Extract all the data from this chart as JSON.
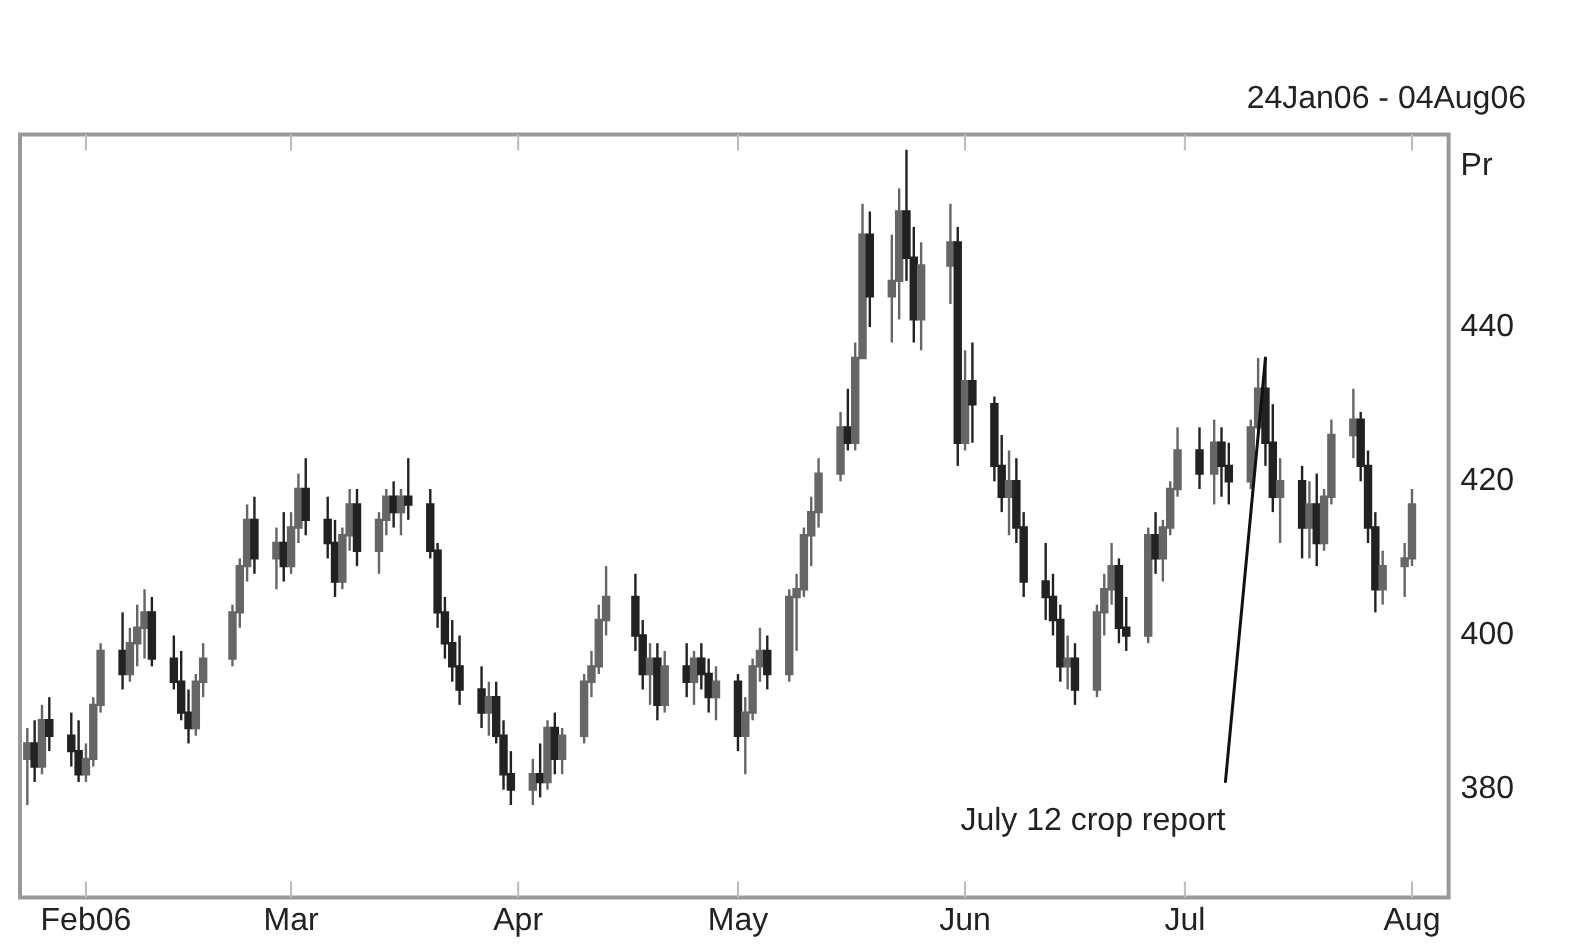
{
  "chart_data": {
    "type": "candlestick",
    "title": "24Jan06 - 04Aug06",
    "ylabel": "Pr",
    "colors": [
      "#666666",
      "#222222",
      "#666666",
      "#222222",
      "#222222",
      "#222222",
      "#666666",
      "#666666",
      "#666666",
      "#222222",
      "#666666",
      "#666666",
      "#666666",
      "#222222",
      "#222222",
      "#222222",
      "#222222",
      "#666666",
      "#666666",
      "#666666",
      "#666666",
      "#666666",
      "#222222",
      "#666666",
      "#222222",
      "#666666",
      "#666666",
      "#222222",
      "#222222",
      "#222222",
      "#666666",
      "#666666",
      "#222222",
      "#666666",
      "#666666",
      "#222222",
      "#666666",
      "#222222",
      "#222222",
      "#222222",
      "#222222",
      "#222222",
      "#222222",
      "#222222",
      "#666666",
      "#222222",
      "#222222",
      "#222222",
      "#666666",
      "#222222",
      "#666666",
      "#222222",
      "#666666",
      "#666666",
      "#666666",
      "#666666",
      "#666666",
      "#222222",
      "#222222",
      "#666666",
      "#222222",
      "#666666",
      "#222222",
      "#666666",
      "#222222",
      "#222222",
      "#666666",
      "#222222",
      "#666666",
      "#666666",
      "#666666",
      "#222222",
      "#666666",
      "#666666",
      "#666666",
      "#666666",
      "#666666",
      "#666666",
      "#222222",
      "#666666",
      "#666666",
      "#222222",
      "#666666",
      "#666666",
      "#222222",
      "#222222",
      "#666666",
      "#666666",
      "#222222",
      "#666666",
      "#222222",
      "#222222",
      "#222222",
      "#666666",
      "#222222",
      "#222222",
      "#222222",
      "#222222",
      "#222222",
      "#666666",
      "#222222",
      "#666666",
      "#666666",
      "#666666",
      "#222222",
      "#222222",
      "#666666",
      "#222222",
      "#666666",
      "#666666",
      "#666666",
      "#222222",
      "#666666",
      "#222222",
      "#222222",
      "#666666",
      "#666666",
      "#222222",
      "#222222",
      "#666666",
      "#222222",
      "#666666",
      "#222222",
      "#666666",
      "#666666",
      "#666666",
      "#222222",
      "#222222",
      "#222222",
      "#666666",
      "#666666",
      "#666666"
    ],
    "x": [
      "2006-01-24",
      "2006-01-25",
      "2006-01-26",
      "2006-01-27",
      "2006-01-30",
      "2006-01-31",
      "2006-02-01",
      "2006-02-02",
      "2006-02-03",
      "2006-02-06",
      "2006-02-07",
      "2006-02-08",
      "2006-02-09",
      "2006-02-10",
      "2006-02-13",
      "2006-02-14",
      "2006-02-15",
      "2006-02-16",
      "2006-02-17",
      "2006-02-21",
      "2006-02-22",
      "2006-02-23",
      "2006-02-24",
      "2006-02-27",
      "2006-02-28",
      "2006-03-01",
      "2006-03-02",
      "2006-03-03",
      "2006-03-06",
      "2006-03-07",
      "2006-03-08",
      "2006-03-09",
      "2006-03-10",
      "2006-03-13",
      "2006-03-14",
      "2006-03-15",
      "2006-03-16",
      "2006-03-17",
      "2006-03-20",
      "2006-03-21",
      "2006-03-22",
      "2006-03-23",
      "2006-03-24",
      "2006-03-27",
      "2006-03-28",
      "2006-03-29",
      "2006-03-30",
      "2006-03-31",
      "2006-04-03",
      "2006-04-04",
      "2006-04-05",
      "2006-04-06",
      "2006-04-07",
      "2006-04-10",
      "2006-04-11",
      "2006-04-12",
      "2006-04-13",
      "2006-04-17",
      "2006-04-18",
      "2006-04-19",
      "2006-04-20",
      "2006-04-21",
      "2006-04-24",
      "2006-04-25",
      "2006-04-26",
      "2006-04-27",
      "2006-04-28",
      "2006-05-01",
      "2006-05-02",
      "2006-05-03",
      "2006-05-04",
      "2006-05-05",
      "2006-05-08",
      "2006-05-09",
      "2006-05-10",
      "2006-05-11",
      "2006-05-12",
      "2006-05-15",
      "2006-05-16",
      "2006-05-17",
      "2006-05-18",
      "2006-05-19",
      "2006-05-22",
      "2006-05-23",
      "2006-05-24",
      "2006-05-25",
      "2006-05-26",
      "2006-05-30",
      "2006-05-31",
      "2006-06-01",
      "2006-06-02",
      "2006-06-05",
      "2006-06-06",
      "2006-06-07",
      "2006-06-08",
      "2006-06-09",
      "2006-06-12",
      "2006-06-13",
      "2006-06-14",
      "2006-06-15",
      "2006-06-16",
      "2006-06-19",
      "2006-06-20",
      "2006-06-21",
      "2006-06-22",
      "2006-06-23",
      "2006-06-26",
      "2006-06-27",
      "2006-06-28",
      "2006-06-29",
      "2006-06-30",
      "2006-07-03",
      "2006-07-05",
      "2006-07-06",
      "2006-07-07",
      "2006-07-10",
      "2006-07-11",
      "2006-07-12",
      "2006-07-13",
      "2006-07-14",
      "2006-07-17",
      "2006-07-18",
      "2006-07-19",
      "2006-07-20",
      "2006-07-21",
      "2006-07-24",
      "2006-07-25",
      "2006-07-26",
      "2006-07-27",
      "2006-07-28",
      "2006-07-31",
      "2006-08-01"
    ],
    "ohlc": [
      [
        384,
        388,
        378,
        386
      ],
      [
        386,
        389,
        381,
        383
      ],
      [
        383,
        391,
        382,
        389
      ],
      [
        389,
        392,
        385,
        387
      ],
      [
        387,
        390,
        383,
        385
      ],
      [
        385,
        389,
        381,
        382
      ],
      [
        382,
        386,
        381,
        384
      ],
      [
        384,
        392,
        383,
        391
      ],
      [
        391,
        399,
        390,
        398
      ],
      [
        398,
        403,
        393,
        395
      ],
      [
        395,
        401,
        394,
        399
      ],
      [
        399,
        404,
        396,
        401
      ],
      [
        401,
        406,
        397,
        403
      ],
      [
        403,
        405,
        396,
        397
      ],
      [
        397,
        400,
        393,
        394
      ],
      [
        394,
        398,
        389,
        390
      ],
      [
        390,
        393,
        386,
        388
      ],
      [
        388,
        395,
        387,
        394
      ],
      [
        394,
        399,
        392,
        397
      ],
      [
        397,
        404,
        396,
        403
      ],
      [
        403,
        410,
        401,
        409
      ],
      [
        409,
        417,
        407,
        415
      ],
      [
        415,
        418,
        408,
        410
      ],
      [
        410,
        414,
        406,
        412
      ],
      [
        412,
        416,
        407,
        409
      ],
      [
        409,
        416,
        408,
        414
      ],
      [
        414,
        421,
        412,
        419
      ],
      [
        419,
        423,
        413,
        415
      ],
      [
        415,
        418,
        410,
        412
      ],
      [
        412,
        415,
        405,
        407
      ],
      [
        407,
        414,
        406,
        413
      ],
      [
        413,
        419,
        411,
        417
      ],
      [
        417,
        419,
        409,
        411
      ],
      [
        411,
        416,
        408,
        415
      ],
      [
        415,
        419,
        413,
        418
      ],
      [
        418,
        420,
        414,
        416
      ],
      [
        416,
        419,
        413,
        418
      ],
      [
        418,
        423,
        415,
        417
      ],
      [
        417,
        419,
        410,
        411
      ],
      [
        411,
        412,
        401,
        403
      ],
      [
        403,
        405,
        397,
        399
      ],
      [
        399,
        402,
        394,
        396
      ],
      [
        396,
        400,
        391,
        393
      ],
      [
        393,
        396,
        388,
        390
      ],
      [
        390,
        394,
        387,
        392
      ],
      [
        392,
        394,
        386,
        387
      ],
      [
        387,
        389,
        380,
        382
      ],
      [
        382,
        385,
        378,
        380
      ],
      [
        380,
        384,
        378,
        382
      ],
      [
        382,
        386,
        379,
        381
      ],
      [
        381,
        389,
        380,
        388
      ],
      [
        388,
        390,
        382,
        384
      ],
      [
        384,
        388,
        382,
        387
      ],
      [
        387,
        395,
        386,
        394
      ],
      [
        394,
        398,
        392,
        396
      ],
      [
        396,
        404,
        395,
        402
      ],
      [
        402,
        409,
        400,
        405
      ],
      [
        405,
        408,
        398,
        400
      ],
      [
        400,
        402,
        393,
        395
      ],
      [
        395,
        399,
        391,
        397
      ],
      [
        397,
        399,
        389,
        391
      ],
      [
        391,
        398,
        390,
        396
      ],
      [
        396,
        399,
        392,
        394
      ],
      [
        394,
        398,
        391,
        397
      ],
      [
        397,
        399,
        393,
        395
      ],
      [
        395,
        397,
        390,
        392
      ],
      [
        392,
        396,
        389,
        394
      ],
      [
        394,
        395,
        385,
        387
      ],
      [
        387,
        392,
        382,
        390
      ],
      [
        390,
        397,
        389,
        396
      ],
      [
        396,
        401,
        394,
        398
      ],
      [
        398,
        400,
        393,
        395
      ],
      [
        395,
        406,
        394,
        405
      ],
      [
        405,
        408,
        398,
        406
      ],
      [
        406,
        414,
        405,
        413
      ],
      [
        413,
        418,
        409,
        416
      ],
      [
        416,
        423,
        414,
        421
      ],
      [
        421,
        429,
        420,
        427
      ],
      [
        427,
        432,
        424,
        425
      ],
      [
        425,
        438,
        424,
        436
      ],
      [
        436,
        456,
        436,
        452
      ],
      [
        452,
        455,
        440,
        444
      ],
      [
        444,
        452,
        438,
        446
      ],
      [
        446,
        458,
        441,
        455
      ],
      [
        455,
        463,
        446,
        449
      ],
      [
        449,
        453,
        438,
        441
      ],
      [
        441,
        451,
        437,
        448
      ],
      [
        448,
        456,
        443,
        451
      ],
      [
        451,
        453,
        422,
        425
      ],
      [
        425,
        437,
        424,
        433
      ],
      [
        433,
        438,
        425,
        430
      ],
      [
        430,
        431,
        420,
        422
      ],
      [
        422,
        426,
        416,
        418
      ],
      [
        418,
        424,
        413,
        420
      ],
      [
        420,
        423,
        412,
        414
      ],
      [
        414,
        416,
        405,
        407
      ],
      [
        407,
        412,
        402,
        405
      ],
      [
        405,
        408,
        400,
        402
      ],
      [
        402,
        404,
        394,
        396
      ],
      [
        396,
        400,
        393,
        397
      ],
      [
        397,
        399,
        391,
        393
      ],
      [
        393,
        404,
        392,
        403
      ],
      [
        403,
        408,
        400,
        406
      ],
      [
        406,
        412,
        404,
        409
      ],
      [
        409,
        410,
        399,
        401
      ],
      [
        401,
        405,
        398,
        400
      ],
      [
        400,
        414,
        399,
        413
      ],
      [
        413,
        416,
        408,
        410
      ],
      [
        410,
        415,
        407,
        414
      ],
      [
        414,
        420,
        413,
        419
      ],
      [
        419,
        427,
        418,
        424
      ],
      [
        424,
        427,
        419,
        421
      ],
      [
        421,
        428,
        417,
        425
      ],
      [
        425,
        427,
        418,
        422
      ],
      [
        422,
        425,
        417,
        420
      ],
      [
        420,
        428,
        419,
        427
      ],
      [
        427,
        436,
        426,
        432
      ],
      [
        432,
        436,
        422,
        425
      ],
      [
        425,
        430,
        416,
        418
      ],
      [
        418,
        423,
        412,
        420
      ],
      [
        420,
        422,
        410,
        414
      ],
      [
        414,
        420,
        410,
        417
      ],
      [
        417,
        421,
        409,
        412
      ],
      [
        412,
        419,
        411,
        418
      ],
      [
        418,
        428,
        417,
        426
      ],
      [
        426,
        432,
        423,
        428
      ],
      [
        428,
        429,
        420,
        422
      ],
      [
        422,
        424,
        412,
        414
      ],
      [
        414,
        416,
        403,
        406
      ],
      [
        406,
        411,
        404,
        409
      ],
      [
        409,
        412,
        405,
        410
      ],
      [
        410,
        419,
        409,
        417
      ]
    ],
    "xlim": [
      "2006-01-23",
      "2006-08-06"
    ],
    "xticks": [
      {
        "value": "2006-02-01",
        "label": "Feb06"
      },
      {
        "value": "2006-03-01",
        "label": "Mar"
      },
      {
        "value": "2006-04-01",
        "label": "Apr"
      },
      {
        "value": "2006-05-01",
        "label": "May"
      },
      {
        "value": "2006-06-01",
        "label": "Jun"
      },
      {
        "value": "2006-07-01",
        "label": "Jul"
      },
      {
        "value": "2006-08-01",
        "label": "Aug"
      }
    ],
    "ylim": [
      366,
      465
    ],
    "yticks": [
      380,
      400,
      420,
      440
    ],
    "grid": false,
    "annotations": [
      {
        "text": "July 12 crop report",
        "x": "2006-07-12",
        "y": 436
      }
    ]
  }
}
